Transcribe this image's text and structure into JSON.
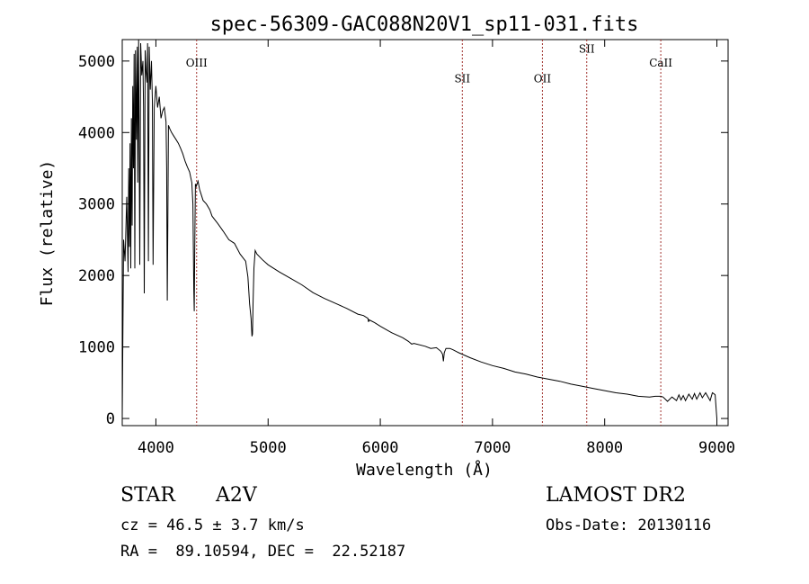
{
  "chart_data": {
    "type": "line",
    "title": "spec-56309-GAC088N20V1_sp11-031.fits",
    "xlabel": "Wavelength (Å)",
    "ylabel": "Flux (relative)",
    "xlim": [
      3700,
      9100
    ],
    "ylim": [
      -100,
      5300
    ],
    "xticks": [
      4000,
      5000,
      6000,
      7000,
      8000,
      9000
    ],
    "xtick_labels": [
      "4000",
      "5000",
      "6000",
      "7000",
      "8000",
      "9000"
    ],
    "yticks": [
      0,
      1000,
      2000,
      3000,
      4000,
      5000
    ],
    "ytick_labels": [
      "0",
      "1000",
      "2000",
      "3000",
      "4000",
      "5000"
    ],
    "grid": false,
    "line_color": "#000000",
    "marker_color": "#a0322d",
    "lines": [
      {
        "label": "OIII",
        "wavelength": 4363,
        "label_flux": 4920
      },
      {
        "label": "SII",
        "wavelength": 6731,
        "label_flux": 4700
      },
      {
        "label": "OII",
        "wavelength": 7445,
        "label_flux": 4700
      },
      {
        "label": "SII",
        "wavelength": 7840,
        "label_flux": 5120
      },
      {
        "label": "CaII",
        "wavelength": 8500,
        "label_flux": 4920
      }
    ],
    "series": [
      {
        "x": [
          3700,
          3712,
          3725,
          3740,
          3752,
          3758,
          3764,
          3770,
          3776,
          3782,
          3788,
          3794,
          3800,
          3806,
          3812,
          3818,
          3826,
          3834,
          3838,
          3846,
          3856,
          3864,
          3874,
          3884,
          3890,
          3896,
          3904,
          3912,
          3920,
          3926,
          3933,
          3940,
          3950,
          3960,
          3968,
          3975,
          3985,
          4000,
          4015,
          4030,
          4045,
          4060,
          4075,
          4090,
          4096,
          4101,
          4106,
          4112,
          4125,
          4140,
          4160,
          4180,
          4200,
          4220,
          4240,
          4260,
          4280,
          4300,
          4320,
          4330,
          4338,
          4342,
          4346,
          4352,
          4360,
          4375,
          4390,
          4400,
          4420,
          4450,
          4480,
          4500,
          4550,
          4600,
          4650,
          4700,
          4750,
          4800,
          4820,
          4835,
          4848,
          4856,
          4861,
          4866,
          4874,
          4885,
          4900,
          4950,
          5000,
          5100,
          5200,
          5300,
          5400,
          5500,
          5600,
          5700,
          5800,
          5850,
          5890,
          5895,
          5900,
          5950,
          6000,
          6100,
          6200,
          6250,
          6280,
          6300,
          6400,
          6450,
          6500,
          6540,
          6555,
          6563,
          6570,
          6585,
          6620,
          6650,
          6700,
          6800,
          6900,
          7000,
          7100,
          7200,
          7300,
          7400,
          7500,
          7600,
          7700,
          7800,
          7900,
          8000,
          8100,
          8200,
          8300,
          8400,
          8450,
          8500,
          8520,
          8560,
          8600,
          8640,
          8662,
          8680,
          8700,
          8720,
          8750,
          8780,
          8800,
          8820,
          8850,
          8870,
          8900,
          8940,
          8960,
          8970,
          8985,
          8995,
          9000
        ],
        "y": [
          20,
          2500,
          2200,
          3100,
          2050,
          3500,
          2400,
          3850,
          2100,
          4200,
          2700,
          4650,
          3500,
          5100,
          2100,
          5150,
          3900,
          5200,
          3300,
          5300,
          2150,
          5250,
          4800,
          5000,
          4350,
          1750,
          5150,
          4850,
          4700,
          5250,
          2200,
          5200,
          4600,
          5000,
          4450,
          2150,
          4350,
          4650,
          4350,
          4500,
          4200,
          4300,
          4350,
          4150,
          3500,
          1650,
          2700,
          4100,
          4050,
          4000,
          3950,
          3900,
          3850,
          3780,
          3700,
          3600,
          3520,
          3450,
          3300,
          3000,
          1800,
          1500,
          2300,
          3280,
          3250,
          3320,
          3200,
          3150,
          3050,
          3000,
          2920,
          2830,
          2730,
          2620,
          2500,
          2450,
          2300,
          2200,
          1980,
          1600,
          1400,
          1150,
          1180,
          1600,
          2100,
          2350,
          2300,
          2220,
          2150,
          2050,
          1960,
          1870,
          1760,
          1680,
          1610,
          1540,
          1460,
          1440,
          1400,
          1350,
          1380,
          1340,
          1290,
          1200,
          1130,
          1080,
          1040,
          1050,
          1010,
          980,
          990,
          940,
          900,
          800,
          920,
          980,
          980,
          960,
          920,
          850,
          790,
          740,
          700,
          650,
          620,
          580,
          550,
          520,
          480,
          450,
          420,
          390,
          360,
          340,
          310,
          300,
          310,
          310,
          300,
          240,
          300,
          250,
          330,
          260,
          320,
          250,
          340,
          270,
          350,
          270,
          360,
          290,
          360,
          250,
          360,
          350,
          330,
          100,
          0
        ]
      }
    ]
  },
  "info": {
    "object_type": "STAR",
    "spectral_class": "A2V",
    "survey": "LAMOST DR2",
    "redshift": "cz = 46.5 ± 3.7 km/s",
    "obs_date": "Obs-Date: 20130116",
    "coords": "RA =  89.10594, DEC =  22.52187"
  }
}
